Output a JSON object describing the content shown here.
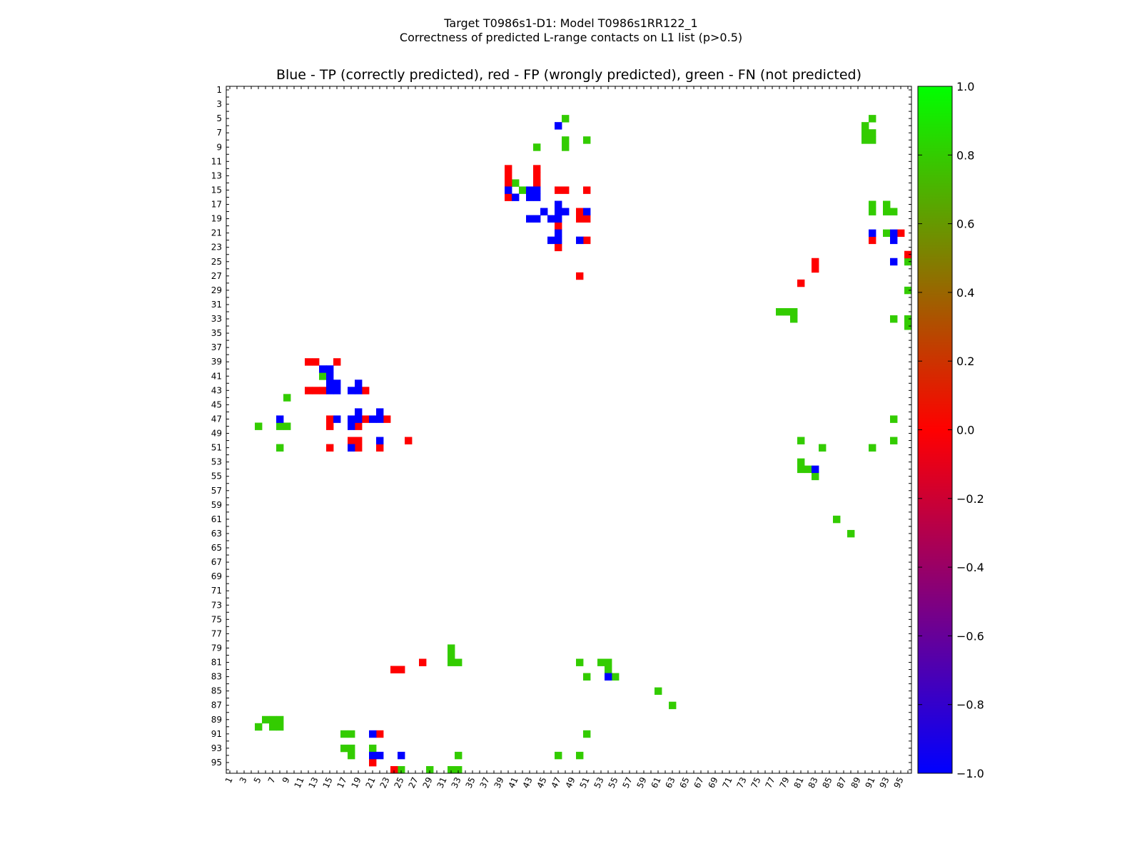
{
  "suptitle_lines": [
    "Target T0986s1-D1: Model T0986s1RR122_1",
    "Correctness of predicted L-range contacts on L1 list (p>0.5)"
  ],
  "colors": {
    "tp": "#0000ff",
    "fp": "#ff0000",
    "fn": "#33cc00"
  },
  "chart_data": {
    "type": "heatmap",
    "title": "Blue - TP (correctly predicted), red - FP (wrongly predicted), green - FN (not predicted)",
    "xlabel": "",
    "ylabel": "",
    "xlim": [
      1,
      96
    ],
    "ylim": [
      1,
      96
    ],
    "x_ticks": [
      "1",
      "3",
      "5",
      "7",
      "9",
      "11",
      "13",
      "15",
      "17",
      "19",
      "21",
      "23",
      "25",
      "27",
      "29",
      "31",
      "33",
      "35",
      "37",
      "39",
      "41",
      "43",
      "45",
      "47",
      "49",
      "51",
      "53",
      "55",
      "57",
      "59",
      "61",
      "63",
      "65",
      "67",
      "69",
      "71",
      "73",
      "75",
      "77",
      "79",
      "81",
      "83",
      "85",
      "87",
      "89",
      "91",
      "93",
      "95"
    ],
    "y_ticks": [
      "1",
      "3",
      "5",
      "7",
      "9",
      "11",
      "13",
      "15",
      "17",
      "19",
      "21",
      "23",
      "25",
      "27",
      "29",
      "31",
      "33",
      "35",
      "37",
      "39",
      "41",
      "43",
      "45",
      "47",
      "49",
      "51",
      "53",
      "55",
      "57",
      "59",
      "61",
      "63",
      "65",
      "67",
      "69",
      "71",
      "73",
      "75",
      "77",
      "79",
      "81",
      "83",
      "85",
      "87",
      "89",
      "91",
      "93",
      "95"
    ],
    "colorbar": {
      "range": [
        -1.0,
        1.0
      ],
      "ticks": [
        "1.0",
        "0.8",
        "0.6",
        "0.4",
        "0.2",
        "0.0",
        "−0.2",
        "−0.4",
        "−0.6",
        "−0.8",
        "−1.0"
      ],
      "colors_bottom_to_top": [
        "#0000ff",
        "#ff0000",
        "#00ff00"
      ]
    },
    "grid": false,
    "legend": "none",
    "tp": [
      [
        6,
        47
      ],
      [
        15,
        40
      ],
      [
        16,
        41
      ],
      [
        15,
        43
      ],
      [
        15,
        44
      ],
      [
        16,
        43
      ],
      [
        16,
        44
      ],
      [
        17,
        47
      ],
      [
        18,
        45
      ],
      [
        19,
        43
      ],
      [
        19,
        44
      ],
      [
        18,
        48
      ],
      [
        19,
        46
      ],
      [
        19,
        47
      ],
      [
        18,
        47
      ],
      [
        21,
        47
      ],
      [
        22,
        47
      ],
      [
        22,
        46
      ],
      [
        22,
        50
      ],
      [
        18,
        51
      ],
      [
        21,
        91
      ],
      [
        22,
        94
      ],
      [
        21,
        94
      ],
      [
        25,
        94
      ],
      [
        40,
        14
      ],
      [
        40,
        15
      ],
      [
        41,
        15
      ],
      [
        42,
        15
      ],
      [
        42,
        16
      ],
      [
        43,
        15
      ],
      [
        43,
        16
      ],
      [
        42,
        19
      ],
      [
        43,
        18
      ],
      [
        43,
        19
      ],
      [
        46,
        19
      ],
      [
        46,
        22
      ],
      [
        47,
        8
      ],
      [
        47,
        16
      ],
      [
        47,
        18
      ],
      [
        47,
        19
      ],
      [
        47,
        21
      ],
      [
        47,
        22
      ],
      [
        48,
        18
      ],
      [
        51,
        18
      ],
      [
        50,
        22
      ],
      [
        54,
        83
      ],
      [
        83,
        54
      ],
      [
        91,
        21
      ],
      [
        94,
        22
      ],
      [
        94,
        21
      ],
      [
        94,
        25
      ]
    ],
    "fp": [
      [
        12,
        40
      ],
      [
        13,
        40
      ],
      [
        14,
        40
      ],
      [
        16,
        40
      ],
      [
        12,
        44
      ],
      [
        13,
        44
      ],
      [
        14,
        44
      ],
      [
        15,
        47
      ],
      [
        15,
        48
      ],
      [
        15,
        51
      ],
      [
        19,
        50
      ],
      [
        18,
        50
      ],
      [
        19,
        51
      ],
      [
        20,
        47
      ],
      [
        22,
        51
      ],
      [
        23,
        47
      ],
      [
        26,
        83
      ],
      [
        25,
        83
      ],
      [
        27,
        50
      ],
      [
        28,
        81
      ],
      [
        22,
        91
      ],
      [
        21,
        95
      ],
      [
        24,
        96
      ],
      [
        39,
        12
      ],
      [
        39,
        13
      ],
      [
        39,
        16
      ],
      [
        43,
        12
      ],
      [
        43,
        13
      ],
      [
        43,
        14
      ],
      [
        43,
        20
      ],
      [
        47,
        15
      ],
      [
        48,
        15
      ],
      [
        47,
        20
      ],
      [
        47,
        23
      ],
      [
        48,
        19
      ],
      [
        50,
        18
      ],
      [
        50,
        19
      ],
      [
        51,
        15
      ],
      [
        51,
        19
      ],
      [
        51,
        22
      ],
      [
        50,
        26
      ],
      [
        81,
        28
      ],
      [
        82,
        24
      ],
      [
        82,
        25
      ],
      [
        91,
        22
      ],
      [
        95,
        21
      ],
      [
        96,
        24
      ]
    ],
    "fn": [
      [
        5,
        48
      ],
      [
        5,
        91
      ],
      [
        6,
        90
      ],
      [
        7,
        90
      ],
      [
        7,
        91
      ],
      [
        8,
        90
      ],
      [
        8,
        91
      ],
      [
        8,
        48
      ],
      [
        9,
        48
      ],
      [
        8,
        51
      ],
      [
        9,
        44
      ],
      [
        14,
        41
      ],
      [
        15,
        42
      ],
      [
        17,
        91
      ],
      [
        18,
        91
      ],
      [
        17,
        93
      ],
      [
        18,
        93
      ],
      [
        18,
        94
      ],
      [
        21,
        93
      ],
      [
        25,
        96
      ],
      [
        29,
        96
      ],
      [
        32,
        78
      ],
      [
        32,
        79
      ],
      [
        32,
        80
      ],
      [
        33,
        80
      ],
      [
        33,
        94
      ],
      [
        33,
        96
      ],
      [
        34,
        96
      ],
      [
        41,
        14
      ],
      [
        42,
        15
      ],
      [
        44,
        9
      ],
      [
        48,
        5
      ],
      [
        48,
        8
      ],
      [
        48,
        9
      ],
      [
        47,
        94
      ],
      [
        50,
        81
      ],
      [
        51,
        84
      ],
      [
        50,
        94
      ],
      [
        51,
        8
      ],
      [
        51,
        91
      ],
      [
        53,
        81
      ],
      [
        54,
        81
      ],
      [
        54,
        82
      ],
      [
        55,
        83
      ],
      [
        61,
        86
      ],
      [
        63,
        88
      ],
      [
        79,
        32
      ],
      [
        80,
        32
      ],
      [
        81,
        32
      ],
      [
        81,
        33
      ],
      [
        81,
        50
      ],
      [
        81,
        53
      ],
      [
        81,
        54
      ],
      [
        82,
        54
      ],
      [
        83,
        51
      ],
      [
        83,
        55
      ],
      [
        85,
        61
      ],
      [
        87,
        63
      ],
      [
        89,
        6
      ],
      [
        89,
        7
      ],
      [
        89,
        8
      ],
      [
        90,
        7
      ],
      [
        90,
        8
      ],
      [
        90,
        5
      ],
      [
        91,
        17
      ],
      [
        91,
        18
      ],
      [
        91,
        51
      ],
      [
        93,
        17
      ],
      [
        93,
        18
      ],
      [
        94,
        18
      ],
      [
        93,
        21
      ],
      [
        94,
        33
      ],
      [
        94,
        47
      ],
      [
        94,
        50
      ],
      [
        96,
        25
      ],
      [
        96,
        29
      ],
      [
        96,
        32
      ],
      [
        96,
        33
      ]
    ]
  }
}
